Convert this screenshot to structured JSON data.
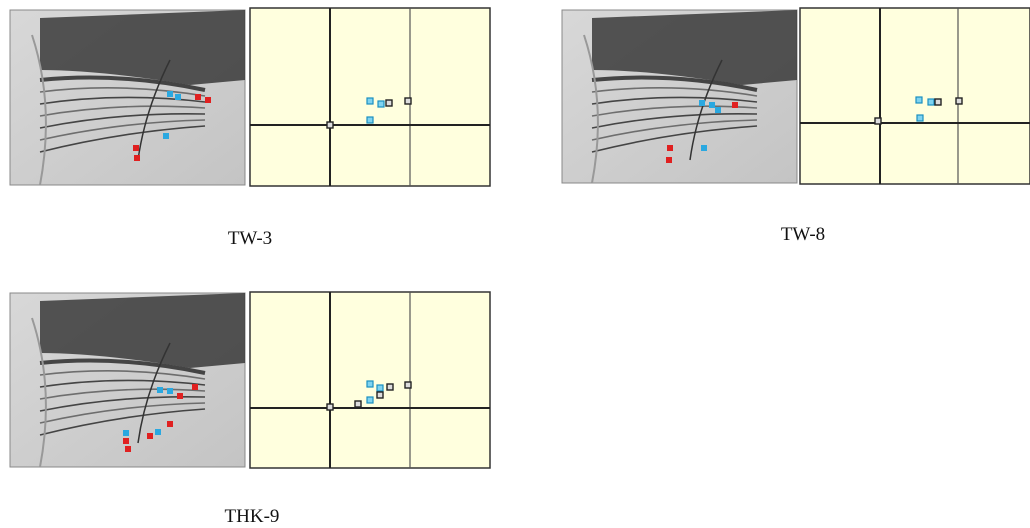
{
  "panels": [
    {
      "label": "TW-3"
    },
    {
      "label": "TW-8"
    },
    {
      "label": "THK-9"
    }
  ]
}
